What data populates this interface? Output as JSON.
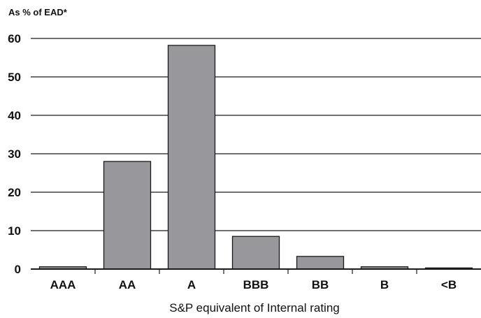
{
  "chart_data": {
    "type": "bar",
    "ylabel": "As % of EAD*",
    "xlabel": "S&P equivalent of Internal rating",
    "categories": [
      "AAA",
      "AA",
      "A",
      "BBB",
      "BB",
      "B",
      "<B"
    ],
    "values": [
      0.6,
      28,
      58.2,
      8.5,
      3.3,
      0.6,
      0.3
    ],
    "ylim": [
      0,
      60
    ],
    "yticks": [
      0,
      10,
      20,
      30,
      40,
      50,
      60
    ],
    "grid": true,
    "legend": "none",
    "colors": {
      "bar": "#98989c",
      "bar_stroke": "#1a1a1a",
      "grid": "#1a1a1a",
      "text": "#111111"
    }
  }
}
